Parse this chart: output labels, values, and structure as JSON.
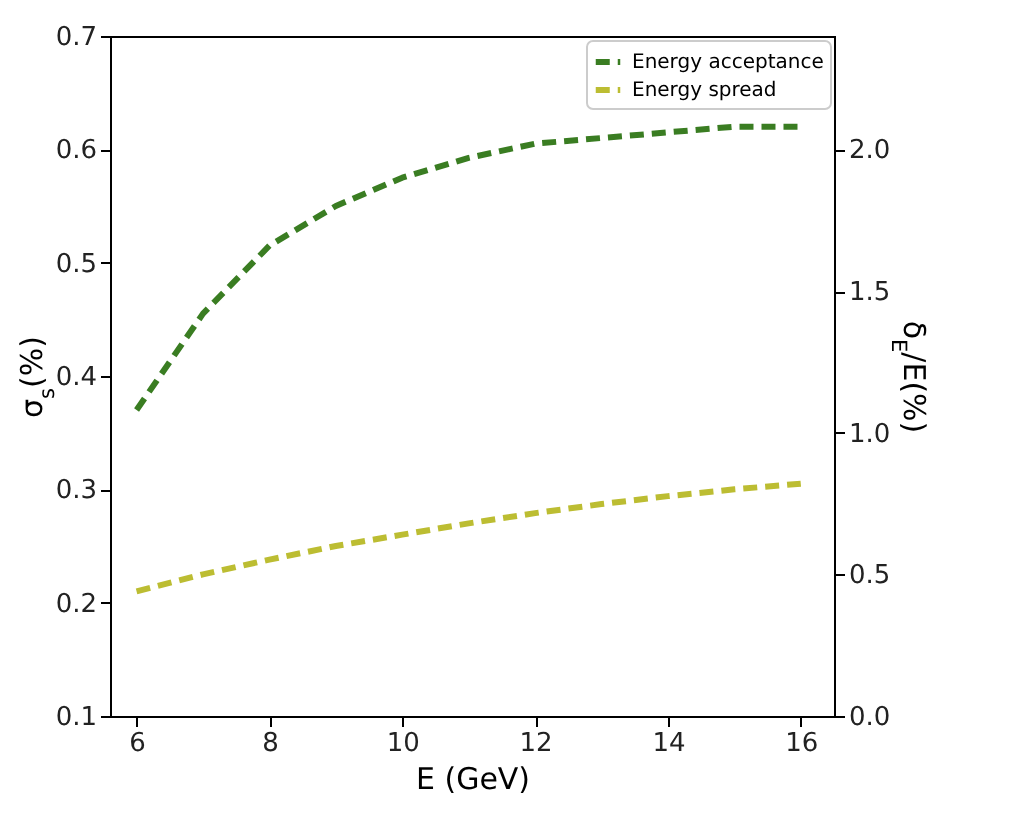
{
  "chart_data": {
    "type": "line",
    "xlabel": "E (GeV)",
    "ylabel": "σ$_{s}$(%)",
    "y2label": "δ$_{E}$/E(%)",
    "x": [
      6,
      7,
      8,
      9,
      10,
      11,
      12,
      13,
      14,
      15,
      16
    ],
    "series": [
      {
        "name": "Energy acceptance",
        "color": "#3a7d22",
        "axis": "y2",
        "values": [
          1.08,
          1.42,
          1.66,
          1.8,
          1.9,
          1.97,
          2.02,
          2.04,
          2.06,
          2.08,
          2.08
        ]
      },
      {
        "name": "Energy spread",
        "color": "#bcbd32",
        "values": [
          0.21,
          0.225,
          0.238,
          0.25,
          0.26,
          0.27,
          0.279,
          0.287,
          0.294,
          0.3,
          0.305
        ]
      }
    ],
    "xlim": [
      5.6,
      16.5
    ],
    "xticks": [
      6,
      8,
      10,
      12,
      14,
      16
    ],
    "ylim": [
      0.1,
      0.7
    ],
    "yticks": [
      0.1,
      0.2,
      0.3,
      0.4,
      0.5,
      0.6,
      0.7
    ],
    "y2lim": [
      0,
      2.4
    ],
    "y2ticks": [
      {
        "value": 0,
        "label": "0.0"
      },
      0.5,
      {
        "value": 1,
        "label": "1.0"
      },
      1.5,
      {
        "value": 2,
        "label": "2.0"
      }
    ],
    "grid": false,
    "legend": "top right",
    "marker": "none",
    "line_style": "dashed"
  }
}
